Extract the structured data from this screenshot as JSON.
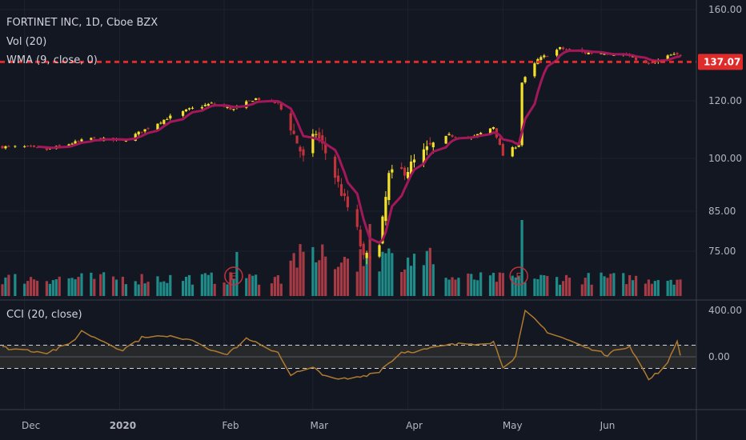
{
  "header": {
    "symbol_line": "FORTINET INC, 1D, Cboe BZX",
    "vol_label": "Vol (20)",
    "wma_label": "WMA (9, close, 0)",
    "cci_label": "CCI (20, close)"
  },
  "colors": {
    "background": "#131722",
    "up": "#f5e12b",
    "down": "#c2323a",
    "wma": "#a3185b",
    "vol_up": "#1f8c89",
    "vol_down": "#a63a45",
    "cci_line": "#b07a2f",
    "price_line": "#e02b2b",
    "earnings": "#c2323a"
  },
  "chart_data": [
    {
      "type": "candlestick",
      "name": "price",
      "x_axis_labels": [
        "Dec",
        "2020",
        "Feb",
        "Mar",
        "Apr",
        "May",
        "Jun"
      ],
      "y_ticks": [
        "160.00",
        "120.00",
        "100.00",
        "85.00",
        "75.00"
      ],
      "y_tick_values": [
        160,
        120,
        100,
        85,
        75
      ],
      "last_price_label": "137.07",
      "last_price": 137.07,
      "overlay": "WMA (9, close, 0)",
      "earnings_markers": [
        {
          "date": "2020-02-06",
          "label": "E"
        },
        {
          "date": "2020-05-06",
          "label": "E"
        }
      ],
      "close_anchors": [
        {
          "date": "2019-11-25",
          "close": 104
        },
        {
          "date": "2019-12-02",
          "close": 104
        },
        {
          "date": "2019-12-09",
          "close": 103
        },
        {
          "date": "2019-12-16",
          "close": 105
        },
        {
          "date": "2019-12-23",
          "close": 107
        },
        {
          "date": "2020-01-02",
          "close": 106
        },
        {
          "date": "2020-01-09",
          "close": 110
        },
        {
          "date": "2020-01-16",
          "close": 114
        },
        {
          "date": "2020-01-23",
          "close": 117
        },
        {
          "date": "2020-01-30",
          "close": 119
        },
        {
          "date": "2020-02-06",
          "close": 117
        },
        {
          "date": "2020-02-13",
          "close": 121
        },
        {
          "date": "2020-02-20",
          "close": 119
        },
        {
          "date": "2020-02-24",
          "close": 111
        },
        {
          "date": "2020-02-28",
          "close": 100
        },
        {
          "date": "2020-03-03",
          "close": 109
        },
        {
          "date": "2020-03-09",
          "close": 95
        },
        {
          "date": "2020-03-12",
          "close": 88
        },
        {
          "date": "2020-03-16",
          "close": 80
        },
        {
          "date": "2020-03-18",
          "close": 73
        },
        {
          "date": "2020-03-23",
          "close": 76
        },
        {
          "date": "2020-03-26",
          "close": 95
        },
        {
          "date": "2020-04-01",
          "close": 97
        },
        {
          "date": "2020-04-08",
          "close": 104
        },
        {
          "date": "2020-04-14",
          "close": 108
        },
        {
          "date": "2020-04-21",
          "close": 107
        },
        {
          "date": "2020-04-28",
          "close": 111
        },
        {
          "date": "2020-05-01",
          "close": 101
        },
        {
          "date": "2020-05-06",
          "close": 105
        },
        {
          "date": "2020-05-07",
          "close": 128
        },
        {
          "date": "2020-05-12",
          "close": 138
        },
        {
          "date": "2020-05-19",
          "close": 143
        },
        {
          "date": "2020-05-27",
          "close": 141
        },
        {
          "date": "2020-06-02",
          "close": 141
        },
        {
          "date": "2020-06-09",
          "close": 140
        },
        {
          "date": "2020-06-16",
          "close": 136
        },
        {
          "date": "2020-06-23",
          "close": 140
        }
      ]
    },
    {
      "type": "bar",
      "name": "Vol (20)",
      "note": "volume bars, colored by candle direction"
    },
    {
      "type": "line",
      "name": "CCI (20, close)",
      "y_ticks": [
        "400.00",
        "0.00"
      ],
      "y_tick_values": [
        400,
        0
      ],
      "bands": [
        100,
        -100
      ],
      "cci_anchors": [
        {
          "date": "2019-11-25",
          "value": 80
        },
        {
          "date": "2019-12-09",
          "value": 40
        },
        {
          "date": "2019-12-16",
          "value": 100
        },
        {
          "date": "2019-12-20",
          "value": 220
        },
        {
          "date": "2020-01-02",
          "value": 60
        },
        {
          "date": "2020-01-09",
          "value": 180
        },
        {
          "date": "2020-01-23",
          "value": 160
        },
        {
          "date": "2020-02-03",
          "value": 10
        },
        {
          "date": "2020-02-10",
          "value": 150
        },
        {
          "date": "2020-02-20",
          "value": 40
        },
        {
          "date": "2020-02-24",
          "value": -150
        },
        {
          "date": "2020-03-02",
          "value": -100
        },
        {
          "date": "2020-03-09",
          "value": -200
        },
        {
          "date": "2020-03-16",
          "value": -180
        },
        {
          "date": "2020-03-23",
          "value": -120
        },
        {
          "date": "2020-03-30",
          "value": 40
        },
        {
          "date": "2020-04-06",
          "value": 60
        },
        {
          "date": "2020-04-14",
          "value": 100
        },
        {
          "date": "2020-04-28",
          "value": 130
        },
        {
          "date": "2020-05-01",
          "value": -80
        },
        {
          "date": "2020-05-05",
          "value": 0
        },
        {
          "date": "2020-05-08",
          "value": 390
        },
        {
          "date": "2020-05-15",
          "value": 220
        },
        {
          "date": "2020-05-27",
          "value": 80
        },
        {
          "date": "2020-06-03",
          "value": 20
        },
        {
          "date": "2020-06-10",
          "value": 100
        },
        {
          "date": "2020-06-16",
          "value": -200
        },
        {
          "date": "2020-06-22",
          "value": -60
        },
        {
          "date": "2020-06-25",
          "value": 140
        },
        {
          "date": "2020-06-26",
          "value": 20
        }
      ]
    }
  ]
}
